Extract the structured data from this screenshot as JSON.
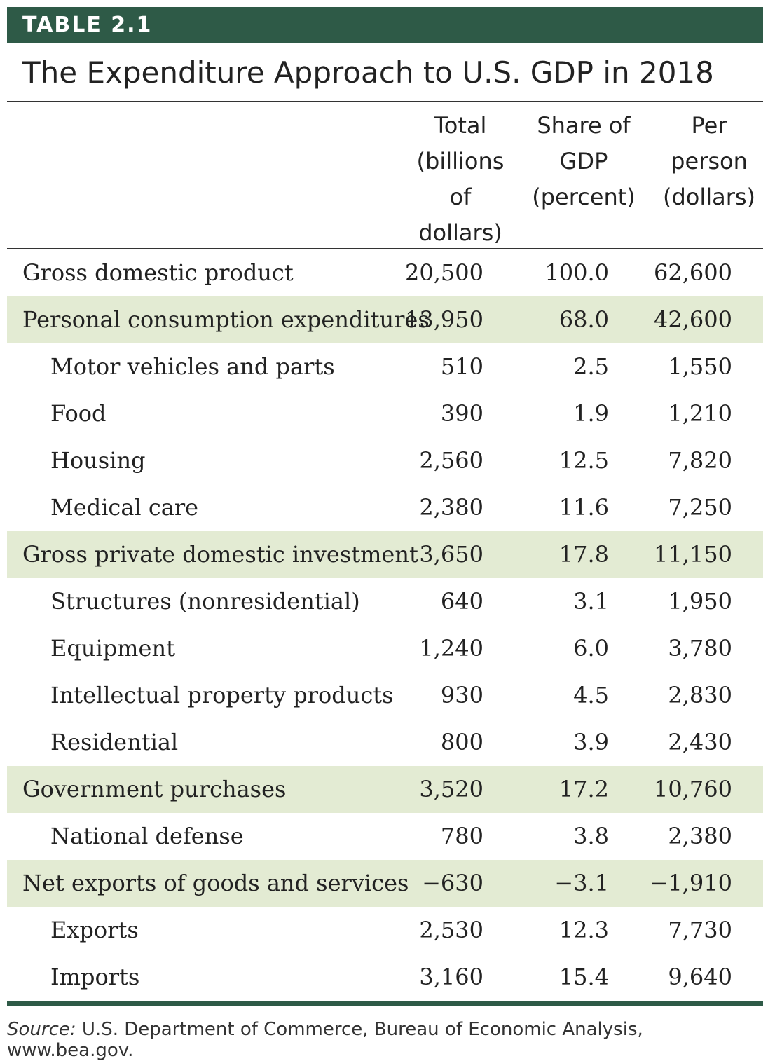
{
  "table_label": "TABLE 2.1",
  "title": "The Expenditure Approach to U.S. GDP in 2018",
  "columns": [
    "Total\n(billions\nof\ndollars)",
    "Share of\nGDP\n(percent)",
    "Per\nperson\n(dollars)"
  ],
  "rows": [
    {
      "label": "Gross domestic product",
      "total": "20,500",
      "share": "100.0",
      "per_person": "62,600",
      "level": "main",
      "shaded": false
    },
    {
      "label": "Personal consumption expenditures",
      "total": "13,950",
      "share": "68.0",
      "per_person": "42,600",
      "level": "main",
      "shaded": true
    },
    {
      "label": "Motor vehicles and parts",
      "total": "510",
      "share": "2.5",
      "per_person": "1,550",
      "level": "sub",
      "shaded": false
    },
    {
      "label": "Food",
      "total": "390",
      "share": "1.9",
      "per_person": "1,210",
      "level": "sub",
      "shaded": false
    },
    {
      "label": "Housing",
      "total": "2,560",
      "share": "12.5",
      "per_person": "7,820",
      "level": "sub",
      "shaded": false
    },
    {
      "label": "Medical care",
      "total": "2,380",
      "share": "11.6",
      "per_person": "7,250",
      "level": "sub",
      "shaded": false
    },
    {
      "label": "Gross private domestic investment",
      "total": "3,650",
      "share": "17.8",
      "per_person": "11,150",
      "level": "main",
      "shaded": true
    },
    {
      "label": "Structures (nonresidential)",
      "total": "640",
      "share": "3.1",
      "per_person": "1,950",
      "level": "sub",
      "shaded": false
    },
    {
      "label": "Equipment",
      "total": "1,240",
      "share": "6.0",
      "per_person": "3,780",
      "level": "sub",
      "shaded": false
    },
    {
      "label": "Intellectual property products",
      "total": "930",
      "share": "4.5",
      "per_person": "2,830",
      "level": "sub",
      "shaded": false
    },
    {
      "label": "Residential",
      "total": "800",
      "share": "3.9",
      "per_person": "2,430",
      "level": "sub",
      "shaded": false
    },
    {
      "label": "Government purchases",
      "total": "3,520",
      "share": "17.2",
      "per_person": "10,760",
      "level": "main",
      "shaded": true
    },
    {
      "label": "National defense",
      "total": "780",
      "share": "3.8",
      "per_person": "2,380",
      "level": "sub",
      "shaded": false
    },
    {
      "label": "Net exports of goods and services",
      "total": "−630",
      "share": "−3.1",
      "per_person": "−1,910",
      "level": "main",
      "shaded": true
    },
    {
      "label": "Exports",
      "total": "2,530",
      "share": "12.3",
      "per_person": "7,730",
      "level": "sub",
      "shaded": false
    },
    {
      "label": "Imports",
      "total": "3,160",
      "share": "15.4",
      "per_person": "9,640",
      "level": "sub",
      "shaded": false
    }
  ],
  "source_label": "Source:",
  "source_text": " U.S. Department of Commerce, Bureau of Economic Analysis, www.bea.gov.",
  "colors": {
    "accent": "#2e5a47",
    "row_shade": "#e3ebd3"
  }
}
